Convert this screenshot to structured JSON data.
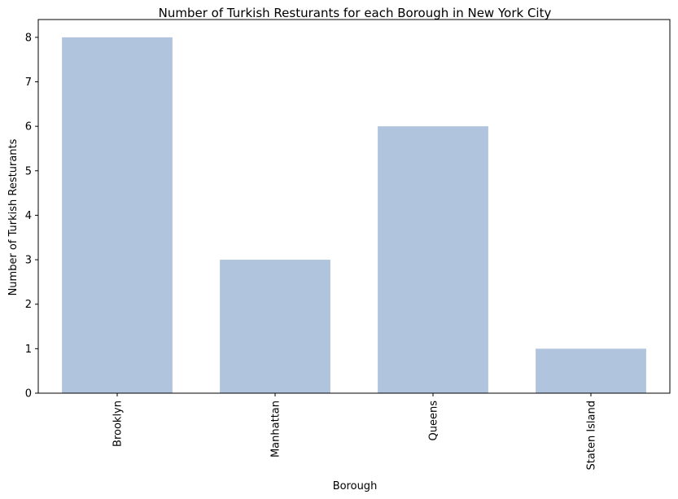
{
  "chart_data": {
    "type": "bar",
    "title": "Number of Turkish Resturants for each Borough in New York City",
    "xlabel": "Borough",
    "ylabel": "Number of Turkish Resturants",
    "categories": [
      "Brooklyn",
      "Manhattan",
      "Queens",
      "Staten Island"
    ],
    "values": [
      8,
      3,
      6,
      1
    ],
    "ylim": [
      0,
      8.4
    ],
    "yticks": [
      0,
      1,
      2,
      3,
      4,
      5,
      6,
      7,
      8
    ],
    "x_tick_rotation": "vertical",
    "grid": false,
    "legend": "none",
    "colors": {
      "bar": "#b0c4de",
      "axes": "#000000",
      "background": "#ffffff"
    }
  }
}
